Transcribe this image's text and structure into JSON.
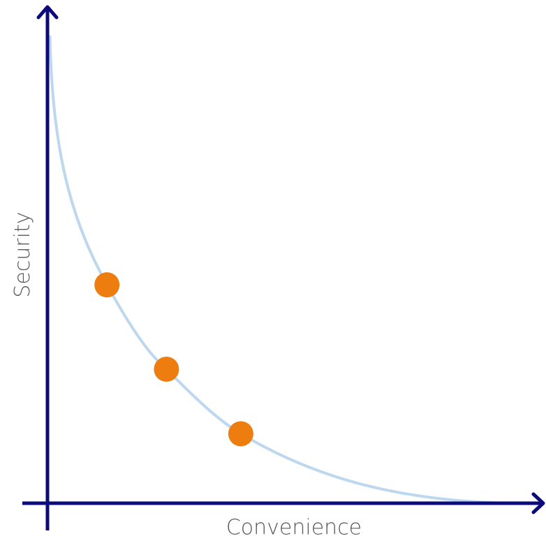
{
  "chart_data": {
    "type": "line",
    "title": "",
    "xlabel": "Convenience",
    "ylabel": "Security",
    "grid": false,
    "legend": "none",
    "curve": {
      "shape": "decreasing convex trade-off curve",
      "color": "#bdd7ee"
    },
    "points": {
      "color": "#ed7d0f",
      "values": [
        {
          "x": 0.12,
          "y": 0.44
        },
        {
          "x": 0.24,
          "y": 0.27
        },
        {
          "x": 0.39,
          "y": 0.14
        }
      ]
    },
    "axis_color": "#0b0b7a"
  }
}
